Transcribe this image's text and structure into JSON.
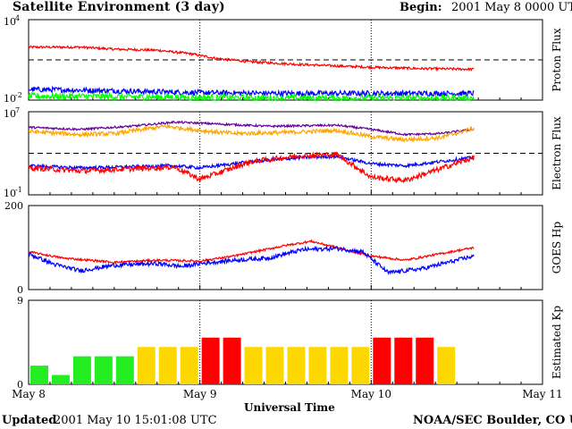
{
  "header": {
    "title": "Satellite Environment (3 day)",
    "begin_label": "Begin:",
    "begin_value": "2001 May 8 0000 UTC"
  },
  "footer": {
    "updated_label": "Updated",
    "updated_value": "2001 May 10 15:01:08 UTC",
    "credit": "NOAA/SEC Boulder, CO USA"
  },
  "chart_data": [
    {
      "type": "line",
      "panel": "proton",
      "ylabel": "Proton Flux",
      "ylog": true,
      "ylim_exp": [
        -2,
        4
      ],
      "yticks": [
        {
          "base": "10",
          "exp": "4"
        },
        {
          "base": "10",
          "exp": "-2"
        }
      ],
      "threshold_exp": 1,
      "series": [
        {
          "color": "#ff0000",
          "noise": 0.09,
          "points": [
            [
              0,
              1.95
            ],
            [
              0.3,
              1.95
            ],
            [
              0.5,
              1.8
            ],
            [
              0.75,
              1.72
            ],
            [
              0.95,
              1.45
            ],
            [
              1.1,
              1.1
            ],
            [
              1.3,
              0.85
            ],
            [
              1.6,
              0.65
            ],
            [
              2.0,
              0.45
            ],
            [
              2.3,
              0.35
            ],
            [
              2.6,
              0.3
            ]
          ]
        },
        {
          "color": "#0000ff",
          "noise": 0.2,
          "points": [
            [
              0,
              -1.2
            ],
            [
              0.5,
              -1.3
            ],
            [
              1.0,
              -1.45
            ],
            [
              1.5,
              -1.5
            ],
            [
              2.0,
              -1.5
            ],
            [
              2.6,
              -1.5
            ]
          ]
        },
        {
          "color": "#00ff00",
          "noise": 0.25,
          "points": [
            [
              0,
              -1.7
            ],
            [
              0.5,
              -1.75
            ],
            [
              1.0,
              -1.8
            ],
            [
              1.5,
              -1.85
            ],
            [
              2.0,
              -1.85
            ],
            [
              2.6,
              -1.85
            ]
          ]
        }
      ]
    },
    {
      "type": "line",
      "panel": "electron",
      "ylabel": "Electron Flux",
      "ylog": true,
      "ylim_exp": [
        -1,
        7
      ],
      "yticks": [
        {
          "base": "10",
          "exp": "7"
        },
        {
          "base": "10",
          "exp": "-1"
        }
      ],
      "threshold_exp": 3,
      "series": [
        {
          "color": "#660099",
          "noise": 0.1,
          "points": [
            [
              0,
              5.5
            ],
            [
              0.3,
              5.3
            ],
            [
              0.6,
              5.6
            ],
            [
              0.85,
              6.0
            ],
            [
              1.0,
              5.9
            ],
            [
              1.4,
              5.6
            ],
            [
              1.8,
              5.7
            ],
            [
              2.0,
              5.3
            ],
            [
              2.2,
              4.8
            ],
            [
              2.4,
              4.9
            ],
            [
              2.6,
              5.3
            ]
          ]
        },
        {
          "color": "#ffa500",
          "noise": 0.2,
          "points": [
            [
              0,
              5.1
            ],
            [
              0.3,
              4.8
            ],
            [
              0.5,
              4.9
            ],
            [
              0.8,
              5.6
            ],
            [
              1.0,
              5.2
            ],
            [
              1.2,
              4.9
            ],
            [
              1.5,
              5.0
            ],
            [
              1.8,
              5.2
            ],
            [
              2.0,
              4.6
            ],
            [
              2.2,
              4.3
            ],
            [
              2.4,
              4.5
            ],
            [
              2.6,
              5.4
            ]
          ]
        },
        {
          "color": "#0000ff",
          "noise": 0.15,
          "points": [
            [
              0,
              1.8
            ],
            [
              0.3,
              1.6
            ],
            [
              0.6,
              1.7
            ],
            [
              0.85,
              1.8
            ],
            [
              1.0,
              1.6
            ],
            [
              1.3,
              2.2
            ],
            [
              1.6,
              2.6
            ],
            [
              1.8,
              2.7
            ],
            [
              2.0,
              2.0
            ],
            [
              2.2,
              1.8
            ],
            [
              2.4,
              2.2
            ],
            [
              2.6,
              2.6
            ]
          ]
        },
        {
          "color": "#ff0000",
          "noise": 0.25,
          "points": [
            [
              0,
              1.6
            ],
            [
              0.3,
              1.3
            ],
            [
              0.6,
              1.5
            ],
            [
              0.85,
              1.7
            ],
            [
              1.0,
              0.5
            ],
            [
              1.3,
              2.2
            ],
            [
              1.6,
              2.8
            ],
            [
              1.8,
              2.9
            ],
            [
              2.0,
              0.7
            ],
            [
              2.2,
              0.4
            ],
            [
              2.4,
              1.5
            ],
            [
              2.6,
              2.6
            ]
          ]
        }
      ]
    },
    {
      "type": "line",
      "panel": "goes_hp",
      "ylabel": "GOES Hp",
      "ylim": [
        0,
        200
      ],
      "ytick_labels": [
        "200",
        "0"
      ],
      "series": [
        {
          "color": "#ff0000",
          "noise": 2.5,
          "points": [
            [
              0,
              90
            ],
            [
              0.2,
              75
            ],
            [
              0.5,
              65
            ],
            [
              0.75,
              70
            ],
            [
              1.0,
              68
            ],
            [
              1.2,
              80
            ],
            [
              1.5,
              105
            ],
            [
              1.65,
              115
            ],
            [
              1.85,
              95
            ],
            [
              2.0,
              80
            ],
            [
              2.2,
              70
            ],
            [
              2.4,
              85
            ],
            [
              2.6,
              100
            ]
          ]
        },
        {
          "color": "#0000ff",
          "noise": 5,
          "points": [
            [
              0,
              85
            ],
            [
              0.15,
              60
            ],
            [
              0.3,
              45
            ],
            [
              0.5,
              58
            ],
            [
              0.75,
              62
            ],
            [
              0.9,
              55
            ],
            [
              1.0,
              62
            ],
            [
              1.2,
              70
            ],
            [
              1.4,
              75
            ],
            [
              1.6,
              95
            ],
            [
              1.8,
              98
            ],
            [
              1.95,
              90
            ],
            [
              2.1,
              40
            ],
            [
              2.3,
              50
            ],
            [
              2.45,
              65
            ],
            [
              2.6,
              80
            ]
          ]
        }
      ]
    },
    {
      "type": "bar",
      "panel": "kp",
      "ylabel": "Estimated Kp",
      "ylim": [
        0,
        9
      ],
      "ytick_labels": [
        "9",
        "0"
      ],
      "bar_width_days": 0.125,
      "values": [
        2,
        1,
        3,
        3,
        3,
        4,
        4,
        4,
        5,
        5,
        4,
        4,
        4,
        4,
        4,
        4,
        5,
        5,
        5,
        4
      ],
      "colors": {
        "low": "#22ee22",
        "mid": "#ffd700",
        "high": "#ff0000"
      }
    }
  ],
  "xaxis": {
    "title": "Universal Time",
    "tick_labels": [
      "May 8",
      "May 9",
      "May 10",
      "May 11"
    ],
    "range_days": [
      0,
      3
    ]
  }
}
